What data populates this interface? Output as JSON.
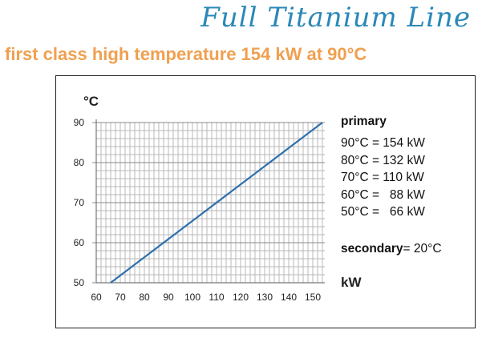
{
  "brand": "Full Titanium Line",
  "headline": {
    "left": "first class high temperature",
    "right": "154 kW at 90°C"
  },
  "legend": {
    "header": "primary",
    "rows": [
      "90°C = 154 kW",
      "80°C = 132 kW",
      "70°C = 110 kW",
      "60°C =   88 kW",
      "50°C =   66 kW"
    ]
  },
  "secondary": {
    "label": "secondary",
    "value": "= 20°C"
  },
  "chart_data": {
    "type": "line",
    "ylabel": "°C",
    "xlabel": "kW",
    "xlim": [
      60,
      155
    ],
    "ylim": [
      50,
      90
    ],
    "xticks": [
      60,
      70,
      80,
      90,
      100,
      110,
      120,
      130,
      140,
      150
    ],
    "yticks": [
      50,
      60,
      70,
      80,
      90
    ],
    "grid": true,
    "line_color": "#2f6fae",
    "series": [
      {
        "x": [
          66,
          88,
          110,
          132,
          154
        ],
        "y": [
          50,
          60,
          70,
          80,
          90
        ]
      }
    ]
  }
}
